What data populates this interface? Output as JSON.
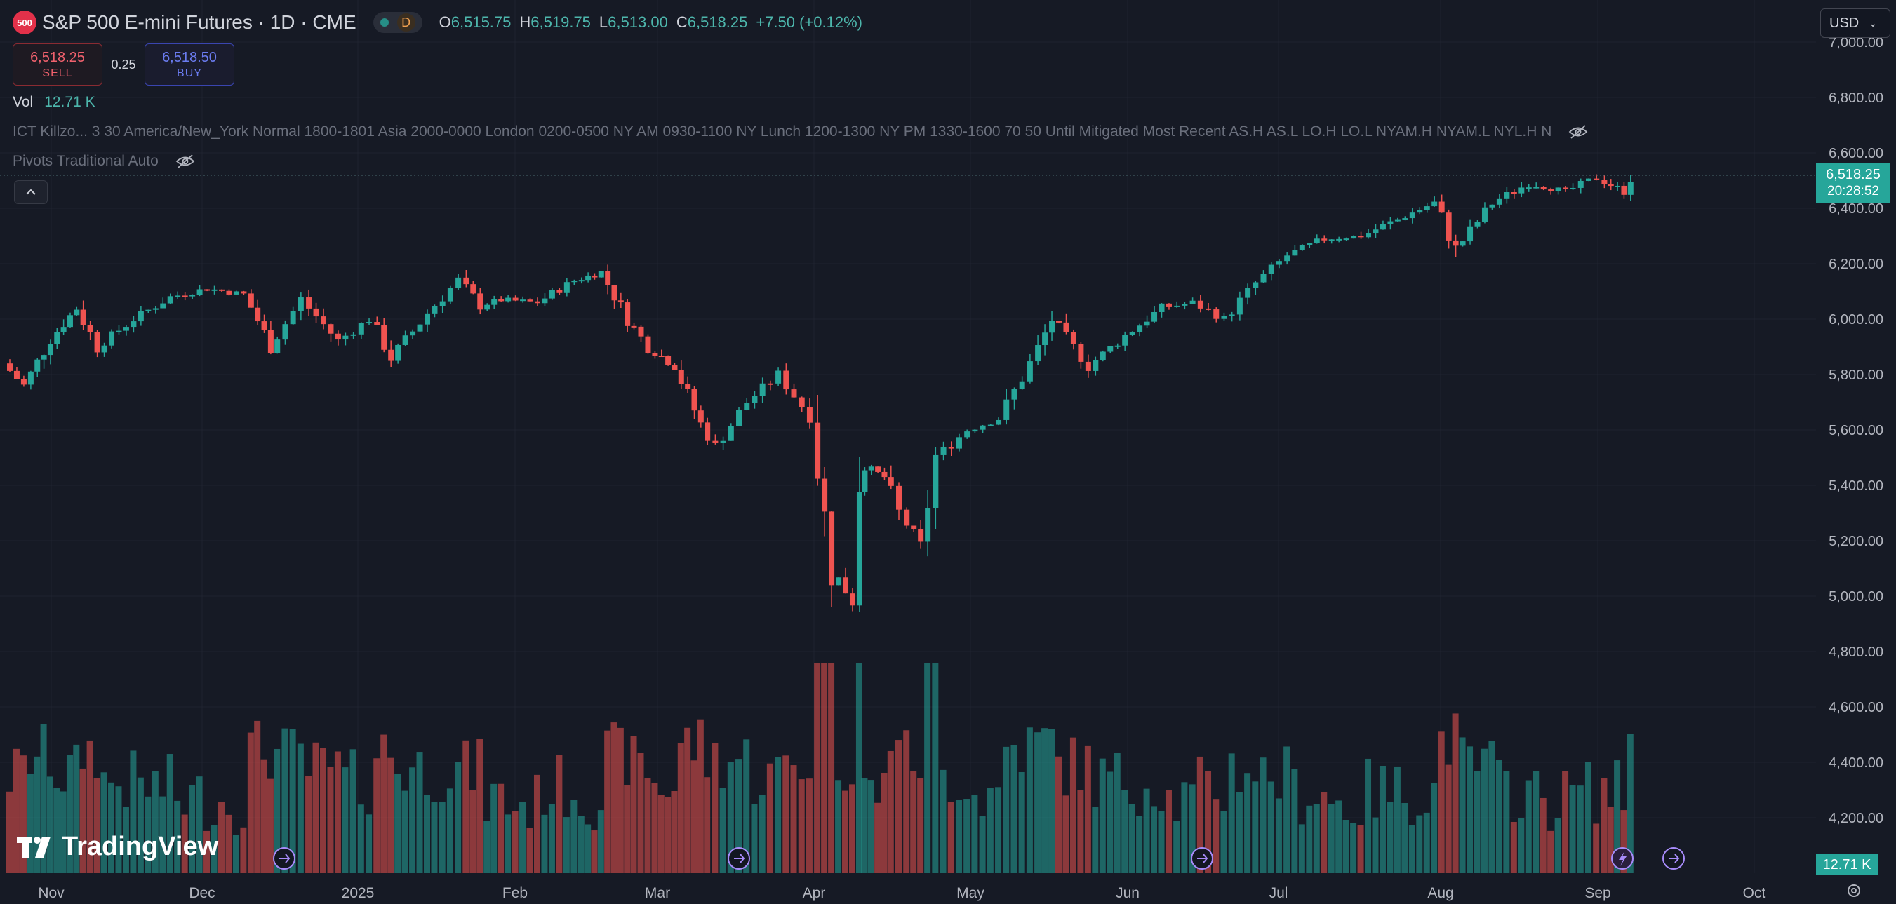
{
  "header": {
    "symbol_badge": "500",
    "title": "S&P 500 E-mini Futures · 1D · CME",
    "interval_badge": "D",
    "ohlc": {
      "o_label": "O",
      "o": "6,515.75",
      "h_label": "H",
      "h": "6,519.75",
      "l_label": "L",
      "l": "6,513.00",
      "c_label": "C",
      "c": "6,518.25",
      "change": "+7.50 (+0.12%)"
    }
  },
  "trade": {
    "sell_price": "6,518.25",
    "sell_label": "SELL",
    "spread": "0.25",
    "buy_price": "6,518.50",
    "buy_label": "BUY"
  },
  "indicators": {
    "vol_label": "Vol",
    "vol_value": "12.71 K",
    "killzones": "ICT Killzo...  3 30 America/New_York Normal 1800-1801 Asia 2000-0000 London 0200-0500 NY AM 0930-1100 NY Lunch 1200-1300 NY PM 1330-1600 70 50 Until Mitigated Most Recent AS.H AS.L LO.H LO.L NYAM.H NYAM.L NYL.H N",
    "pivots": "Pivots Traditional Auto"
  },
  "currency": "USD",
  "current_price": "6,518.25",
  "countdown": "20:28:52",
  "volume_tag": "12.71 K",
  "watermark": "TradingView",
  "colors": {
    "up": "#26a69a",
    "down": "#ef5350",
    "background": "#161a25"
  },
  "chart_data": {
    "type": "candlestick",
    "y_ticks": [
      "4,200.00",
      "4,400.00",
      "4,600.00",
      "4,800.00",
      "5,000.00",
      "5,200.00",
      "5,400.00",
      "5,600.00",
      "5,800.00",
      "6,000.00",
      "6,200.00",
      "6,400.00",
      "6,600.00",
      "6,800.00",
      "7,000.00"
    ],
    "x_ticks": [
      "Nov",
      "Dec",
      "2025",
      "Feb",
      "Mar",
      "Apr",
      "May",
      "Jun",
      "Jul",
      "Aug",
      "Sep",
      "Oct"
    ],
    "ylim": [
      4100,
      7000
    ],
    "close_series": [
      [
        "2024-10-28",
        5840
      ],
      [
        "2024-11-01",
        5760
      ],
      [
        "2024-11-06",
        5930
      ],
      [
        "2024-11-11",
        6040
      ],
      [
        "2024-11-15",
        5900
      ],
      [
        "2024-11-22",
        6000
      ],
      [
        "2024-11-29",
        6080
      ],
      [
        "2024-12-06",
        6110
      ],
      [
        "2024-12-13",
        6090
      ],
      [
        "2024-12-18",
        5900
      ],
      [
        "2024-12-24",
        6070
      ],
      [
        "2024-12-31",
        5920
      ],
      [
        "2025-01-06",
        6000
      ],
      [
        "2025-01-10",
        5860
      ],
      [
        "2025-01-17",
        6020
      ],
      [
        "2025-01-23",
        6140
      ],
      [
        "2025-01-27",
        6050
      ],
      [
        "2025-01-31",
        6070
      ],
      [
        "2025-02-07",
        6060
      ],
      [
        "2025-02-14",
        6140
      ],
      [
        "2025-02-19",
        6170
      ],
      [
        "2025-02-24",
        6000
      ],
      [
        "2025-02-28",
        5900
      ],
      [
        "2025-03-05",
        5830
      ],
      [
        "2025-03-10",
        5620
      ],
      [
        "2025-03-13",
        5540
      ],
      [
        "2025-03-19",
        5700
      ],
      [
        "2025-03-25",
        5800
      ],
      [
        "2025-03-31",
        5650
      ],
      [
        "2025-04-04",
        5100
      ],
      [
        "2025-04-08",
        4980
      ],
      [
        "2025-04-09",
        5480
      ],
      [
        "2025-04-14",
        5430
      ],
      [
        "2025-04-17",
        5300
      ],
      [
        "2025-04-21",
        5180
      ],
      [
        "2025-04-24",
        5500
      ],
      [
        "2025-04-30",
        5600
      ],
      [
        "2025-05-06",
        5640
      ],
      [
        "2025-05-12",
        5840
      ],
      [
        "2025-05-16",
        6000
      ],
      [
        "2025-05-23",
        5830
      ],
      [
        "2025-05-30",
        5940
      ],
      [
        "2025-06-06",
        6040
      ],
      [
        "2025-06-12",
        6060
      ],
      [
        "2025-06-18",
        6000
      ],
      [
        "2025-06-24",
        6130
      ],
      [
        "2025-06-30",
        6230
      ],
      [
        "2025-07-07",
        6290
      ],
      [
        "2025-07-14",
        6300
      ],
      [
        "2025-07-21",
        6360
      ],
      [
        "2025-07-28",
        6420
      ],
      [
        "2025-08-01",
        6250
      ],
      [
        "2025-08-08",
        6420
      ],
      [
        "2025-08-15",
        6490
      ],
      [
        "2025-08-22",
        6460
      ],
      [
        "2025-08-28",
        6510
      ],
      [
        "2025-09-02",
        6460
      ],
      [
        "2025-09-04",
        6518
      ]
    ]
  }
}
